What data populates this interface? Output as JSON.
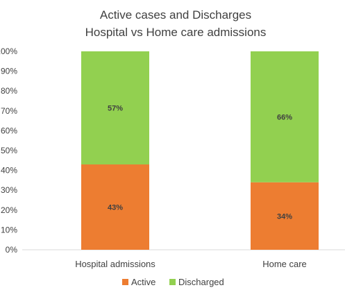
{
  "chart_data": {
    "type": "bar",
    "stacked": true,
    "title_lines": [
      "Active cases and Discharges",
      "Hospital vs Home care admissions"
    ],
    "categories": [
      "Hospital admissions",
      "Home care"
    ],
    "series": [
      {
        "name": "Active",
        "values": [
          43,
          34
        ],
        "labels": [
          "43%",
          "34%"
        ],
        "color": "#ED7D31"
      },
      {
        "name": "Discharged",
        "values": [
          57,
          66
        ],
        "labels": [
          "57%",
          "66%"
        ],
        "color": "#92D050"
      }
    ],
    "y_ticks": [
      "0%",
      "10%",
      "20%",
      "30%",
      "40%",
      "50%",
      "60%",
      "70%",
      "80%",
      "90%",
      "100%"
    ],
    "ylim": [
      0,
      100
    ],
    "grid": false,
    "legend_position": "bottom"
  }
}
